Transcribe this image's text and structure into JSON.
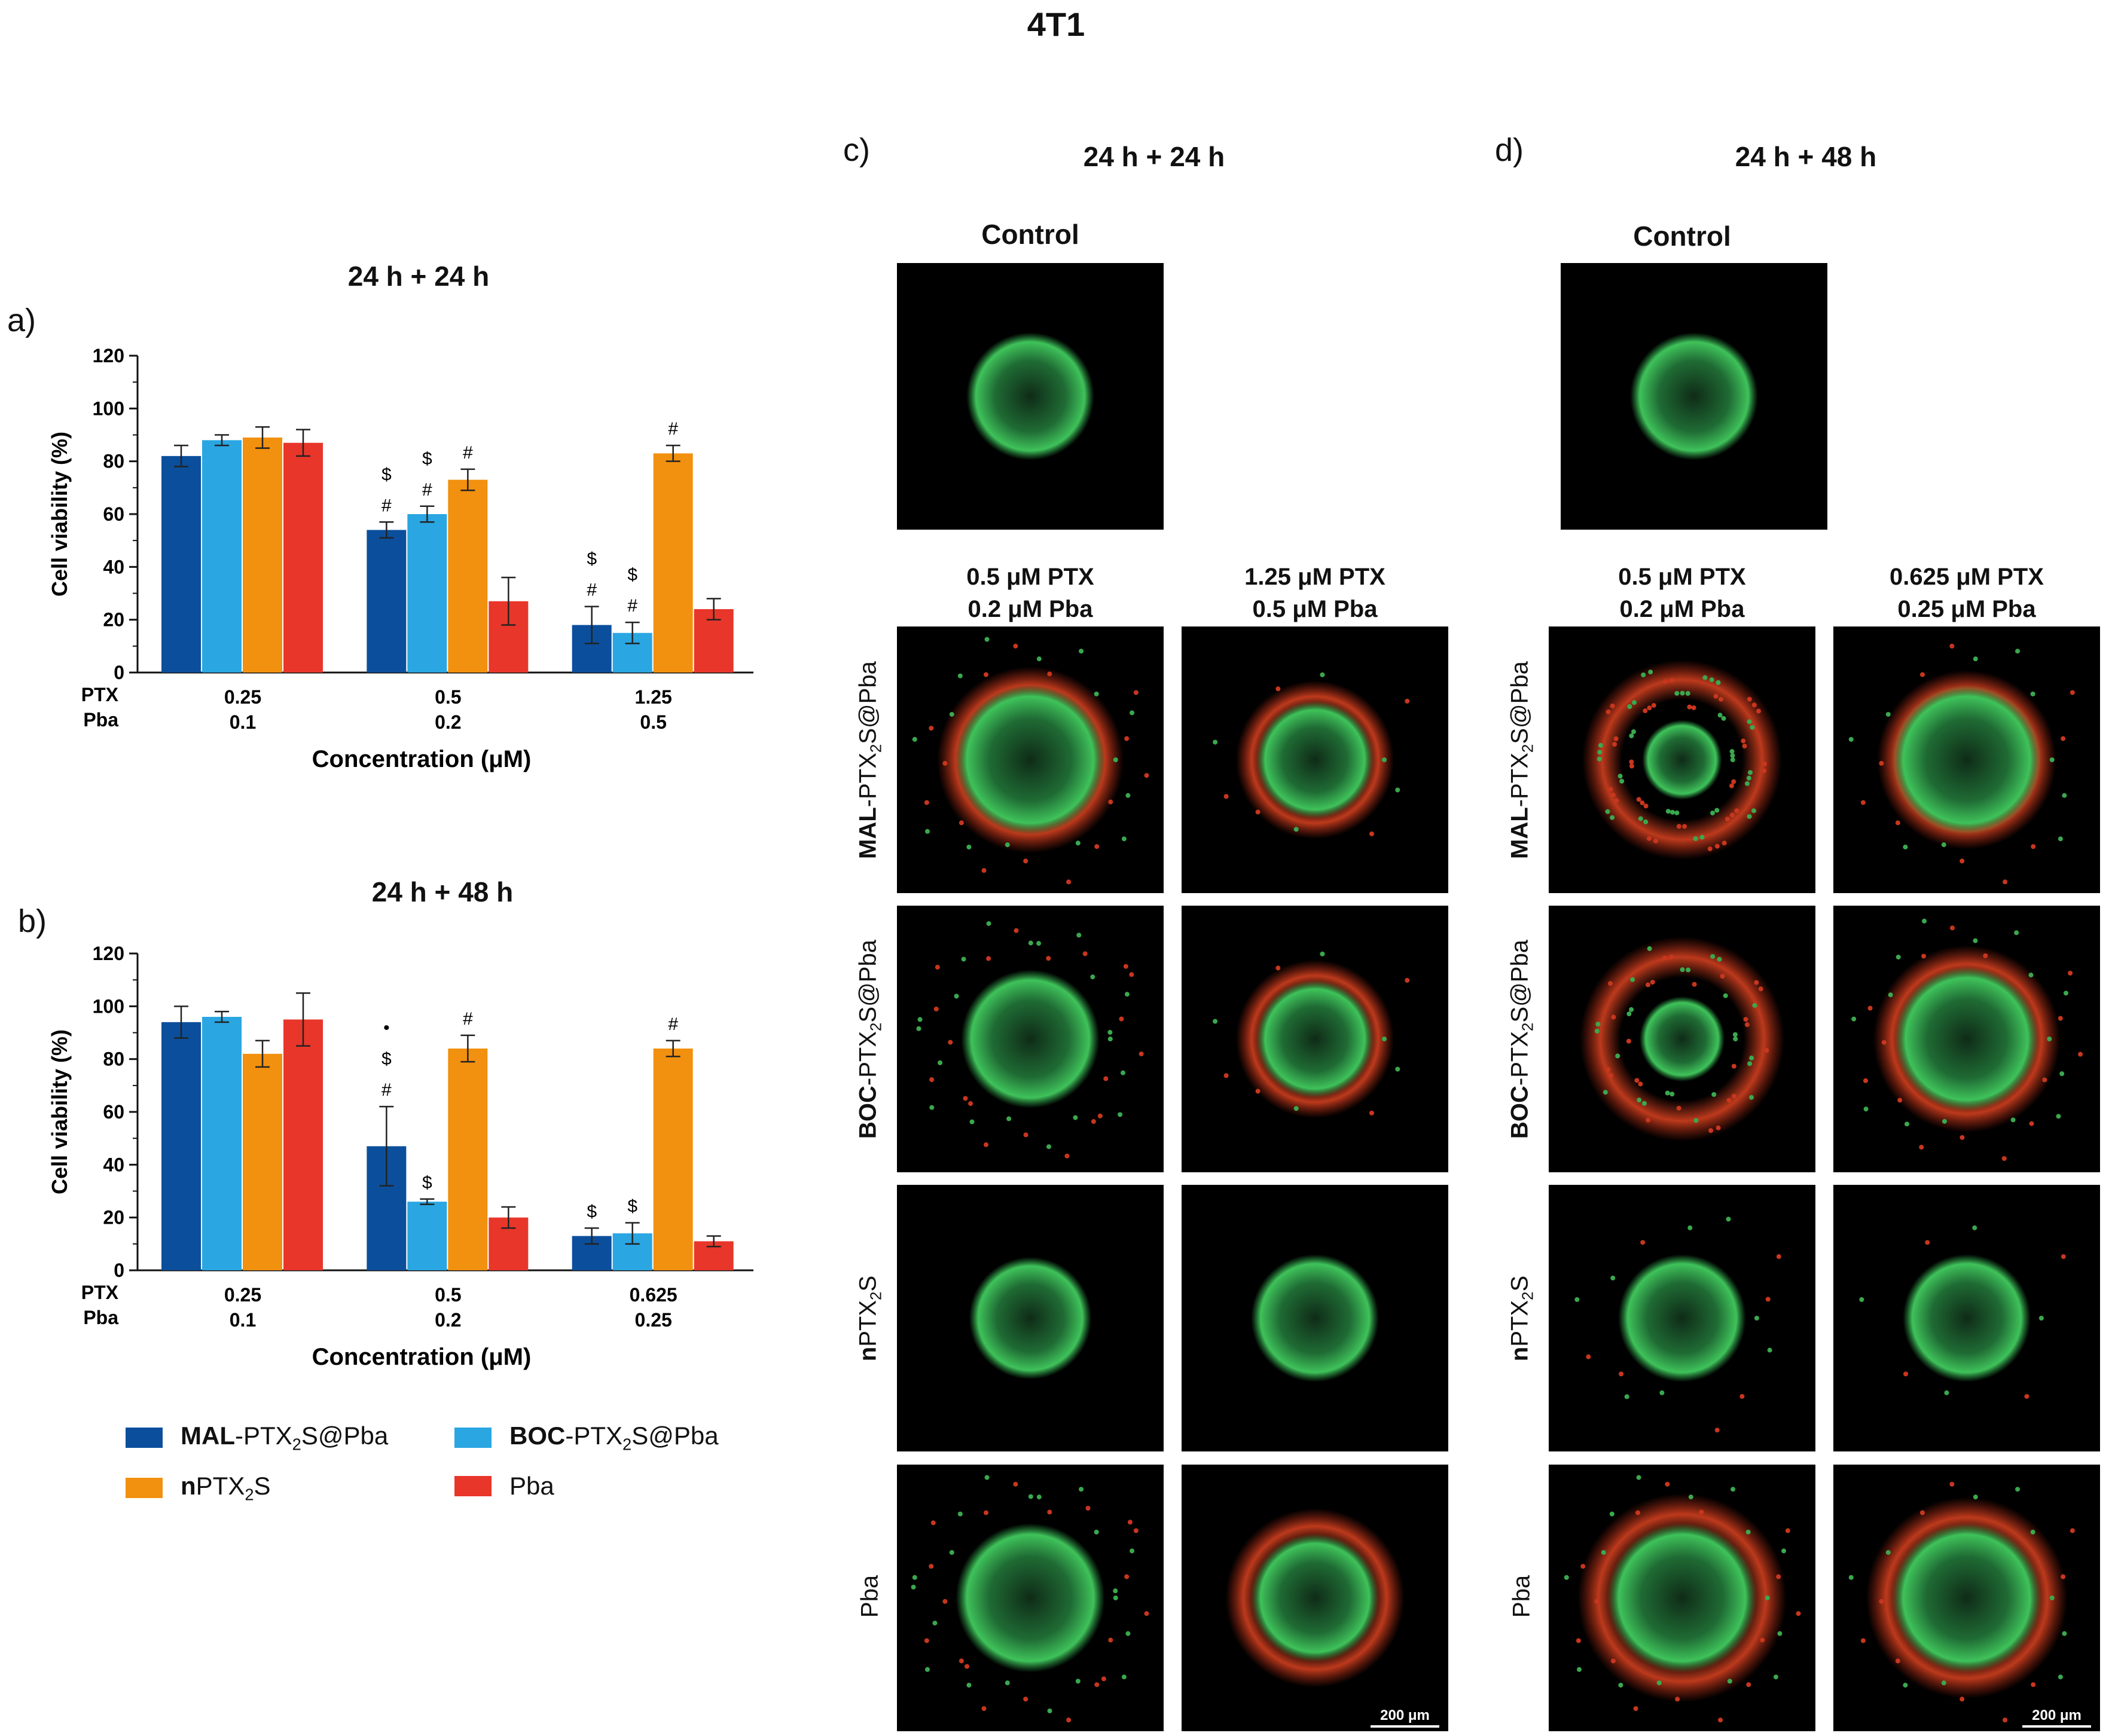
{
  "page_title": "4T1",
  "panel_letters": {
    "a": "a)",
    "b": "b)",
    "c": "c)",
    "d": "d)"
  },
  "colors": {
    "MAL": "#0b4f9c",
    "BOC": "#2aa6e2",
    "nPTX2S": "#f2900f",
    "Pba": "#e8362a",
    "image_bg": "#000000"
  },
  "legend": [
    {
      "bold": "MAL",
      "rest": "-PTX",
      "sub": "2",
      "rest2": "S@Pba",
      "color": "#0b4f9c"
    },
    {
      "bold": "BOC",
      "rest": "-PTX",
      "sub": "2",
      "rest2": "S@Pba",
      "color": "#2aa6e2"
    },
    {
      "bold": "n",
      "rest": "PTX",
      "sub": "2",
      "rest2": "S",
      "color": "#f2900f"
    },
    {
      "bold": "",
      "rest": "Pba",
      "sub": "",
      "rest2": "",
      "color": "#e8362a"
    }
  ],
  "chart_data": [
    {
      "type": "bar",
      "title": "24 h + 24 h",
      "ylabel": "Cell viability (%)",
      "xlabel": "Concentration (μM)",
      "ylim": [
        0,
        120
      ],
      "yticks": [
        "0",
        "20",
        "40",
        "60",
        "80",
        "100",
        "120"
      ],
      "row_labels": [
        "PTX",
        "Pba"
      ],
      "categories": [
        {
          "ptx": "0.25",
          "pba": "0.1"
        },
        {
          "ptx": "0.5",
          "pba": "0.2"
        },
        {
          "ptx": "1.25",
          "pba": "0.5"
        }
      ],
      "series": [
        {
          "values": [
            82,
            54,
            18
          ],
          "errors": [
            4,
            3,
            7
          ],
          "color": "#0b4f9c",
          "annotations": [
            [],
            [
              "#",
              "$"
            ],
            [
              "#",
              "$"
            ]
          ]
        },
        {
          "values": [
            88,
            60,
            15
          ],
          "errors": [
            2,
            3,
            4
          ],
          "color": "#2aa6e2",
          "annotations": [
            [],
            [
              "#",
              "$"
            ],
            [
              "#",
              "$"
            ]
          ]
        },
        {
          "values": [
            89,
            73,
            83
          ],
          "errors": [
            4,
            4,
            3
          ],
          "color": "#f2900f",
          "annotations": [
            [],
            [
              "#"
            ],
            [
              "#"
            ]
          ]
        },
        {
          "values": [
            87,
            27,
            24
          ],
          "errors": [
            5,
            9,
            4
          ],
          "color": "#e8362a",
          "annotations": [
            [],
            [],
            []
          ]
        }
      ]
    },
    {
      "type": "bar",
      "title": "24 h + 48 h",
      "ylabel": "Cell viability (%)",
      "xlabel": "Concentration (μM)",
      "ylim": [
        0,
        120
      ],
      "yticks": [
        "0",
        "20",
        "40",
        "60",
        "80",
        "100",
        "120"
      ],
      "row_labels": [
        "PTX",
        "Pba"
      ],
      "categories": [
        {
          "ptx": "0.25",
          "pba": "0.1"
        },
        {
          "ptx": "0.5",
          "pba": "0.2"
        },
        {
          "ptx": "0.625",
          "pba": "0.25"
        }
      ],
      "series": [
        {
          "values": [
            94,
            47,
            13
          ],
          "errors": [
            6,
            15,
            3
          ],
          "color": "#0b4f9c",
          "annotations": [
            [],
            [
              "#",
              "$",
              "•"
            ],
            [
              "$"
            ]
          ]
        },
        {
          "values": [
            96,
            26,
            14
          ],
          "errors": [
            2,
            1,
            4
          ],
          "color": "#2aa6e2",
          "annotations": [
            [],
            [
              "$"
            ],
            [
              "$"
            ]
          ]
        },
        {
          "values": [
            82,
            84,
            84
          ],
          "errors": [
            5,
            5,
            3
          ],
          "color": "#f2900f",
          "annotations": [
            [],
            [
              "#"
            ],
            [
              "#"
            ]
          ]
        },
        {
          "values": [
            95,
            20,
            11
          ],
          "errors": [
            10,
            4,
            2
          ],
          "color": "#e8362a",
          "annotations": [
            [],
            [],
            []
          ]
        }
      ]
    }
  ],
  "panel_c": {
    "title": "24 h + 24 h",
    "control_label": "Control",
    "col1": [
      "0.5 μM PTX",
      "0.2 μM Pba"
    ],
    "col2": [
      "1.25 μM PTX",
      "0.5 μM Pba"
    ],
    "scale_bar": "200 μm"
  },
  "panel_d": {
    "title": "24 h + 48 h",
    "control_label": "Control",
    "col1": [
      "0.5 μM PTX",
      "0.2 μM Pba"
    ],
    "col2": [
      "0.625 μM PTX",
      "0.25 μM Pba"
    ],
    "scale_bar": "200 μm"
  },
  "row_labels": {
    "mal": {
      "bold": "MAL",
      "rest": "-PTX",
      "sub": "2",
      "rest2": "S@Pba"
    },
    "boc": {
      "bold": "BOC",
      "rest": "-PTX",
      "sub": "2",
      "rest2": "S@Pba"
    },
    "nptx": {
      "bold": "n",
      "rest": "PTX",
      "sub": "2",
      "rest2": "S"
    },
    "pba": {
      "bold": "",
      "rest": "Pba",
      "sub": "",
      "rest2": ""
    }
  }
}
